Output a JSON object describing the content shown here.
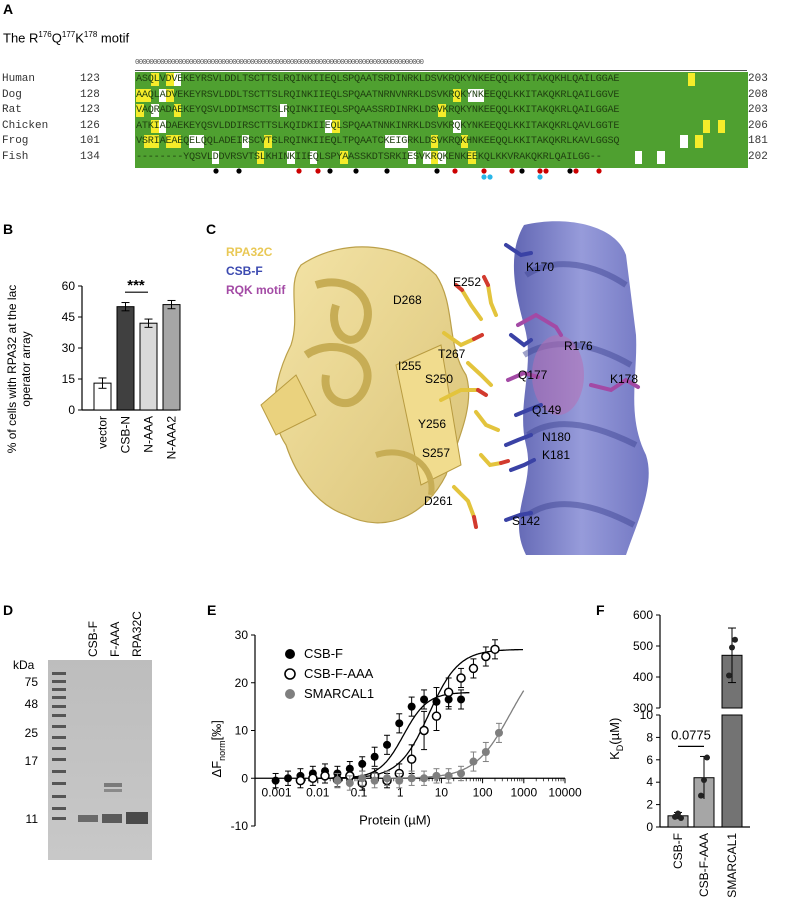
{
  "panels": {
    "a": "A",
    "b": "B",
    "c": "C",
    "d": "D",
    "e": "E",
    "f": "F"
  },
  "panel_a": {
    "title_parts": [
      "The R",
      "176",
      "Q",
      "177",
      "K",
      "178",
      " motif"
    ],
    "helix_symbols": "00000000000000000000000000000000000000000000000000000000000000000000000000000000",
    "rows": [
      {
        "species": "Human",
        "start": "123",
        "seq": "ASQLVDVEKEYRSVLDDLTSCTTSLRQINKIIEQLSPQAATSRDINRKLDSVKRQKYNKEEQQLKKITAKQKHLQAILGGAE",
        "end": "203"
      },
      {
        "species": "Dog",
        "start": "128",
        "seq": "AAQLADVEKEYRSVLDDLTSCTTSLRQINKIIEQLSPQAATNRNVNRKLDSVKRQKYNKEEQQLKKITAKQKRLQAILGGVE",
        "end": "208"
      },
      {
        "species": "Rat",
        "start": "123",
        "seq": "VAQRADAEKEYQSVLDDIMSCTTSLRQINKIIEQLSPQAASSRDINRKLDSVKRQKYNKEEQQLKKITAKQKRLQAILGGAE",
        "end": "203"
      },
      {
        "species": "Chicken",
        "start": "126",
        "seq": "ATKIADAEKEYQSVLDDIRSCTTSLKQIDKIIEQLSPQAATNNKINRKLDSVKRQKYNKEEQQLKKITAKQKRLQAVLGGTE",
        "end": "206"
      },
      {
        "species": "Frog",
        "start": "101",
        "seq": "VSRIAEAEQELQQLADEIRSCVTSLRQINKIIEQLTPQAATCKEIGRKLDSVKRQKHNKEEQQLKKITAKQKRLKAVLGGSQ",
        "end": "181"
      },
      {
        "species": "Fish",
        "start": "134",
        "seq": "--------YQSVLDDVRSVTSLKHINKIIEQLSPYAASSKDTSRKIESVKRQKENKEEKQLKKVRAKQKRLQAILGG--",
        "end": "202"
      }
    ],
    "colors": {
      "conserved": "#4fa030",
      "similar": "#f5ec2a",
      "different": "#ffffff"
    }
  },
  "panel_b": {
    "ylabel": "% of cells with RPA32 at the lac operator array",
    "yticks": [
      "0",
      "15",
      "30",
      "45",
      "60"
    ],
    "sig": "***",
    "chart_data": {
      "type": "bar",
      "categories": [
        "vector",
        "CSB-N",
        "N-AAA",
        "N-AAA2"
      ],
      "values": [
        13,
        50,
        42,
        51
      ],
      "errors": [
        2.5,
        2,
        2,
        2
      ],
      "ylim": [
        0,
        60
      ],
      "colors": [
        "#ffffff",
        "#404040",
        "#d9d9d9",
        "#a6a6a6"
      ]
    }
  },
  "panel_c": {
    "legend": [
      {
        "text": "RPA32C",
        "color": "#e9c855"
      },
      {
        "text": "CSB-F",
        "color": "#3c4ab0"
      },
      {
        "text": "RQK motif",
        "color": "#a34aa5"
      }
    ],
    "residues": [
      "K170",
      "E252",
      "D268",
      "R176",
      "T267",
      "I255",
      "S250",
      "Q177",
      "K178",
      "Q149",
      "Y256",
      "N180",
      "S257",
      "K181",
      "D261",
      "S142"
    ]
  },
  "panel_d": {
    "kda_label": "kDa",
    "markers": [
      "75",
      "48",
      "25",
      "17",
      "11"
    ],
    "lanes": [
      "CSB-F",
      "F-AAA",
      "RPA32C"
    ]
  },
  "panel_e": {
    "ylabel": "ΔF norm [‰]",
    "ylabel_main": "ΔF",
    "ylabel_sub": "norm",
    "ylabel_unit": "[‰]",
    "xlabel": "Protein (µM)",
    "yticks": [
      "-10",
      "0",
      "10",
      "20",
      "30"
    ],
    "xticks": [
      "0.001",
      "0.01",
      "0.1",
      "1",
      "10",
      "100",
      "1000",
      "10000"
    ],
    "chart_data": {
      "type": "scatter",
      "xscale": "log",
      "xlim": [
        0.0003,
        10000
      ],
      "ylim": [
        -10,
        30
      ],
      "series": [
        {
          "name": "CSB-F",
          "marker": "filled",
          "color": "#000000",
          "x": [
            0.00095,
            0.0019,
            0.0038,
            0.0076,
            0.015,
            0.03,
            0.06,
            0.12,
            0.24,
            0.48,
            0.95,
            1.9,
            3.8,
            7.6,
            15,
            30
          ],
          "y": [
            -0.5,
            0,
            0.5,
            1,
            1.5,
            1,
            2,
            3,
            4.5,
            7,
            11.5,
            15,
            16.5,
            16,
            16.5,
            16.5
          ],
          "err": [
            1.5,
            1.5,
            1.5,
            1.5,
            1.5,
            1.5,
            1.5,
            1.5,
            2,
            2,
            2,
            2,
            2,
            3,
            2,
            2
          ]
        },
        {
          "name": "CSB-F-AAA",
          "marker": "open",
          "color": "#000000",
          "x": [
            0.0038,
            0.0076,
            0.015,
            0.03,
            0.06,
            0.12,
            0.24,
            0.48,
            0.95,
            1.9,
            3.8,
            7.6,
            15,
            30,
            60,
            120,
            200
          ],
          "y": [
            -0.5,
            0,
            0.5,
            -0.3,
            0.5,
            -1,
            0.5,
            -0.5,
            1,
            4,
            10,
            13,
            18,
            21,
            23,
            25.5,
            27
          ],
          "err": [
            1.5,
            1.5,
            1.5,
            1.5,
            1.5,
            1.5,
            1.5,
            1.5,
            2,
            3,
            4,
            3,
            3,
            2,
            2,
            2,
            2
          ]
        },
        {
          "name": "SMARCAL1",
          "marker": "filled",
          "color": "#7f7f7f",
          "x": [
            0.03,
            0.06,
            0.12,
            0.24,
            0.48,
            0.95,
            1.9,
            3.8,
            7.6,
            15,
            30,
            60,
            120,
            250
          ],
          "y": [
            -0.5,
            -1,
            0,
            -0.5,
            0,
            -0.5,
            0,
            0,
            0.5,
            0.5,
            1,
            3.5,
            5.5,
            9.5
          ],
          "err": [
            1.5,
            1.5,
            1.5,
            1.5,
            1.5,
            1.5,
            1.5,
            1.5,
            1.5,
            1.5,
            1.5,
            2,
            2,
            2
          ]
        }
      ],
      "fits": [
        {
          "name": "CSB-F",
          "color": "#000000",
          "top": 18,
          "kd": 1.2,
          "hill": 1.5
        },
        {
          "name": "CSB-F-AAA",
          "color": "#000000",
          "top": 27,
          "kd": 5,
          "hill": 1.2
        },
        {
          "name": "SMARCAL1",
          "color": "#7f7f7f",
          "top": 27,
          "kd": 470,
          "hill": 1.0
        }
      ]
    }
  },
  "panel_f": {
    "ylabel": "K D (µM)",
    "ylabel_main": "K",
    "ylabel_sub": "D",
    "ylabel_unit": "(µM)",
    "yticks_low": [
      "0",
      "2",
      "4",
      "6",
      "8",
      "10"
    ],
    "yticks_high": [
      "300",
      "400",
      "500",
      "600"
    ],
    "pval": "0.0775",
    "chart_data": {
      "type": "bar",
      "categories": [
        "CSB-F",
        "CSB-F-AAA",
        "SMARCAL1"
      ],
      "values": [
        1.0,
        4.4,
        470
      ],
      "errors": [
        0.3,
        1.9,
        88
      ],
      "points": [
        [
          0.9,
          1.2,
          0.8
        ],
        [
          2.8,
          4.2,
          6.2
        ],
        [
          405,
          495,
          520
        ]
      ],
      "colors": [
        "#a6a6a6",
        "#a6a6a6",
        "#737373"
      ]
    }
  }
}
